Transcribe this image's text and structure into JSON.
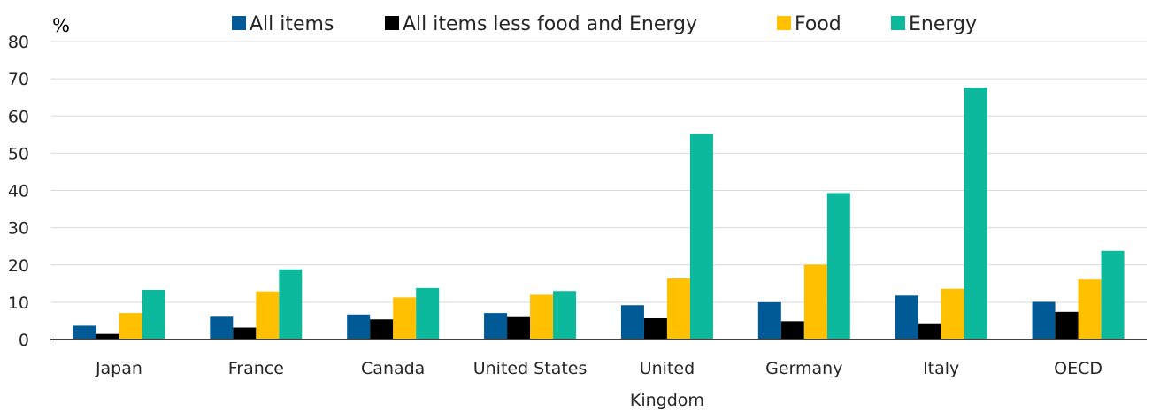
{
  "chart_data": {
    "type": "bar",
    "unit_label": "%",
    "categories": [
      [
        "Japan"
      ],
      [
        "France"
      ],
      [
        "Canada"
      ],
      [
        "United States"
      ],
      [
        "United",
        "Kingdom"
      ],
      [
        "Germany"
      ],
      [
        "Italy"
      ],
      [
        "OECD"
      ]
    ],
    "series": [
      {
        "name": "All items",
        "color": "#005a96",
        "values": [
          3.7,
          6.1,
          6.7,
          7.1,
          9.2,
          10.0,
          11.8,
          10.1
        ]
      },
      {
        "name": "All items less food and Energy",
        "color": "#000000",
        "values": [
          1.5,
          3.2,
          5.4,
          6.0,
          5.7,
          4.9,
          4.1,
          7.4
        ]
      },
      {
        "name": "Food",
        "color": "#ffc000",
        "values": [
          7.1,
          12.9,
          11.3,
          12.0,
          16.4,
          20.1,
          13.6,
          16.1
        ]
      },
      {
        "name": "Energy",
        "color": "#0cb99c",
        "values": [
          13.3,
          18.8,
          13.8,
          13.0,
          55.1,
          39.3,
          67.6,
          23.8
        ]
      }
    ],
    "ylim": [
      0,
      80
    ],
    "yticks": [
      0,
      10,
      20,
      30,
      40,
      50,
      60,
      70,
      80
    ],
    "grid": true,
    "legend_position": "top"
  }
}
